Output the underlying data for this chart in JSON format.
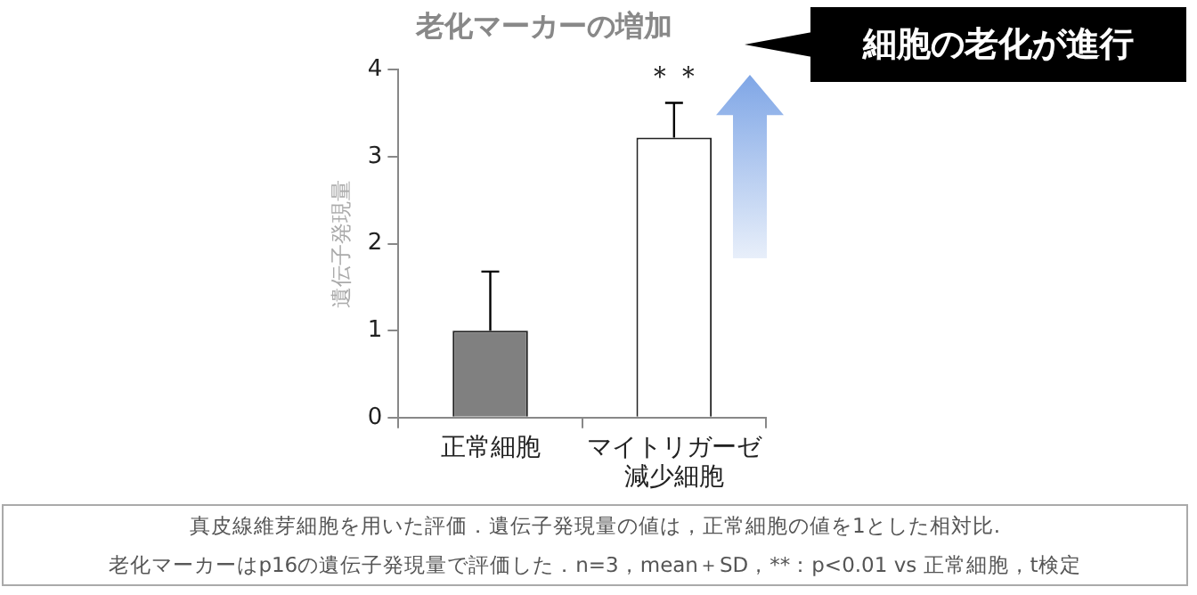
{
  "chart_data": {
    "type": "bar",
    "title": "老化マーカーの増加",
    "ylabel": "遺伝子発現量",
    "categories": [
      "正常細胞",
      "マイトリガーゼ減少細胞"
    ],
    "values": [
      1.0,
      3.22
    ],
    "colors": [
      "#808080",
      "#ffffff"
    ],
    "errors": [
      [
        1.0,
        1.68
      ],
      [
        3.22,
        3.62
      ]
    ],
    "ylim": [
      0,
      4
    ],
    "yticks": [
      0,
      1,
      2,
      3,
      4
    ],
    "grid": false,
    "legend": false,
    "annotations": [
      "＊＊",
      "細胞の老化が進行",
      "真皮線維芽細胞を用いた評価．遺伝子発現量の値は，正常細胞の値を1とした相対比.",
      "老化マーカーはp16の遺伝子発現量で評価した．n=3，mean＋SD，**：p<0.01 vs 正常細胞，t検定"
    ]
  }
}
